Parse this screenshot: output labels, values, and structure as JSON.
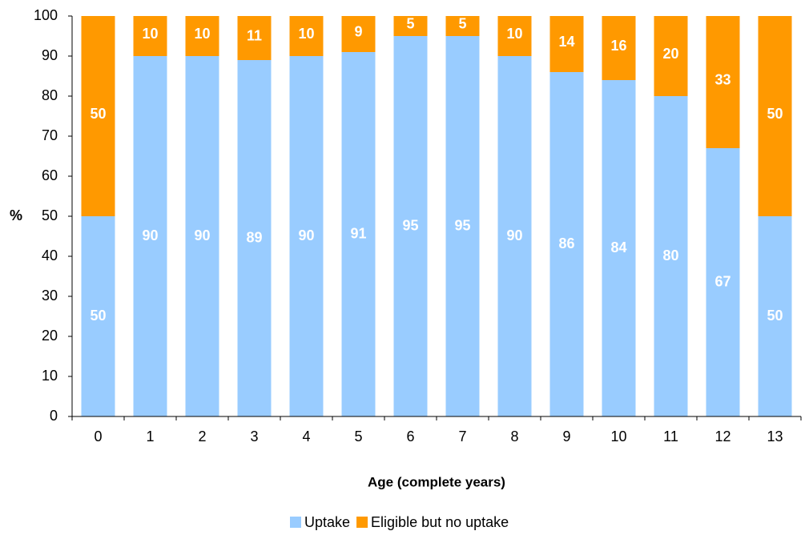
{
  "chart_data": {
    "type": "stacked_bar",
    "categories": [
      "0",
      "1",
      "2",
      "3",
      "4",
      "5",
      "6",
      "7",
      "8",
      "9",
      "10",
      "11",
      "12",
      "13"
    ],
    "series": [
      {
        "name": "Uptake",
        "color": "#99ccff",
        "values": [
          50,
          90,
          90,
          89,
          90,
          91,
          95,
          95,
          90,
          86,
          84,
          80,
          67,
          50
        ]
      },
      {
        "name": "Eligible but no uptake",
        "color": "#ff9900",
        "values": [
          50,
          10,
          10,
          11,
          10,
          9,
          5,
          5,
          10,
          14,
          16,
          20,
          33,
          50
        ]
      }
    ],
    "ylim": [
      0,
      100
    ],
    "yticks": [
      0,
      10,
      20,
      30,
      40,
      50,
      60,
      70,
      80,
      90,
      100
    ],
    "ylabel": "%",
    "xlabel": "Age (complete years)",
    "legend": "bottom"
  }
}
